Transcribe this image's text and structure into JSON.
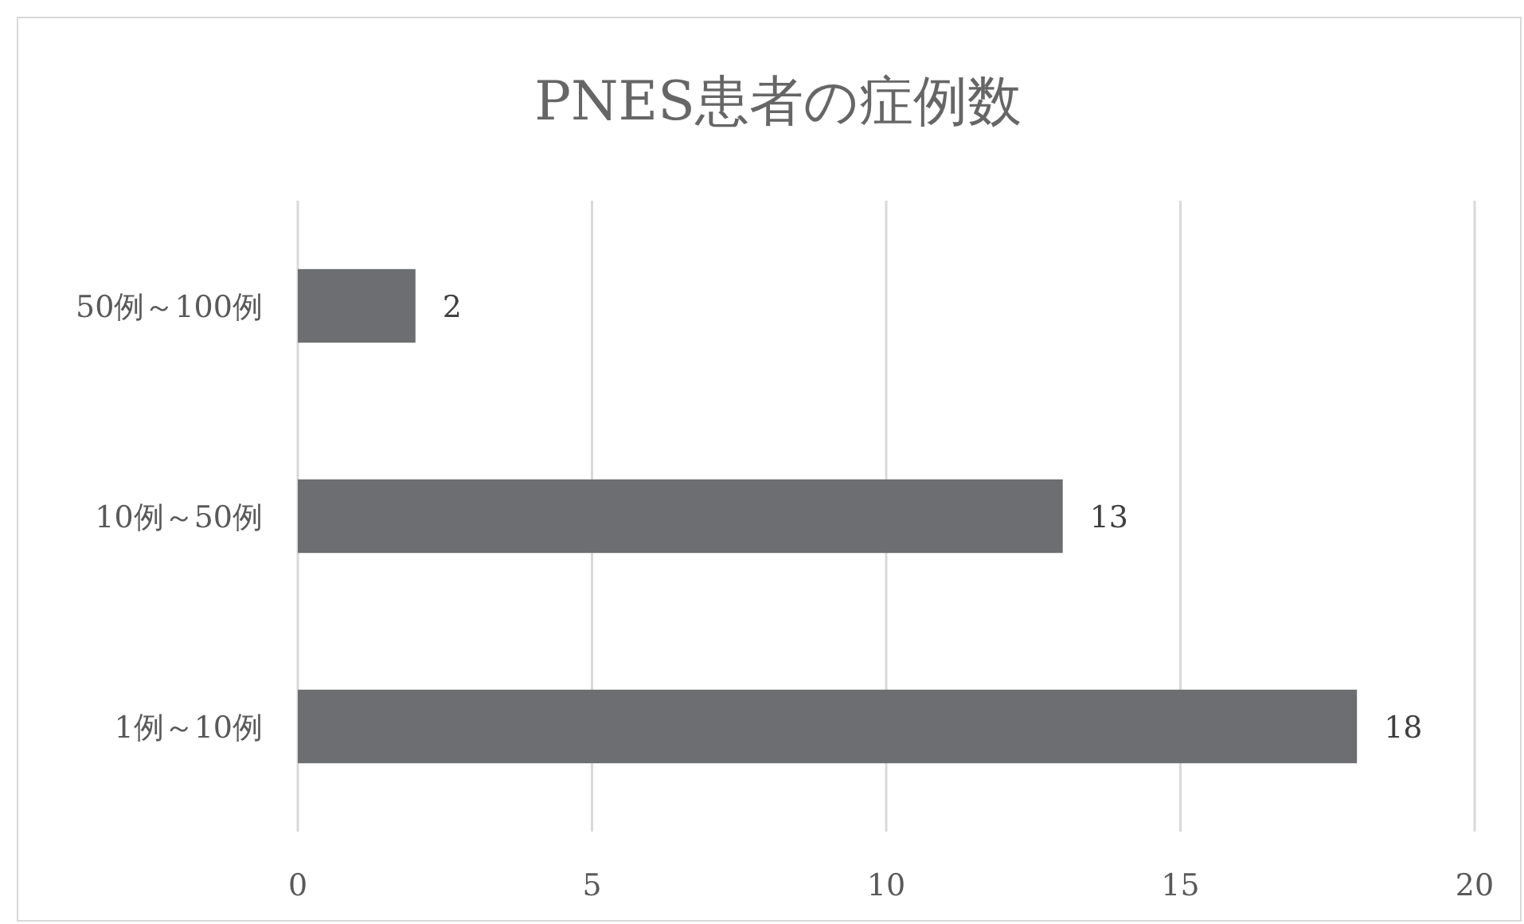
{
  "chart_data": {
    "type": "bar",
    "orientation": "horizontal",
    "title": "PNES患者の症例数",
    "categories": [
      "50例～100例",
      "10例～50例",
      "1例～10例"
    ],
    "values": [
      2,
      13,
      18
    ],
    "color": "#6d6e71",
    "xlim": [
      0,
      20
    ],
    "xticks": [
      0,
      5,
      10,
      15,
      20
    ],
    "grid": "x",
    "data_labels": true
  }
}
